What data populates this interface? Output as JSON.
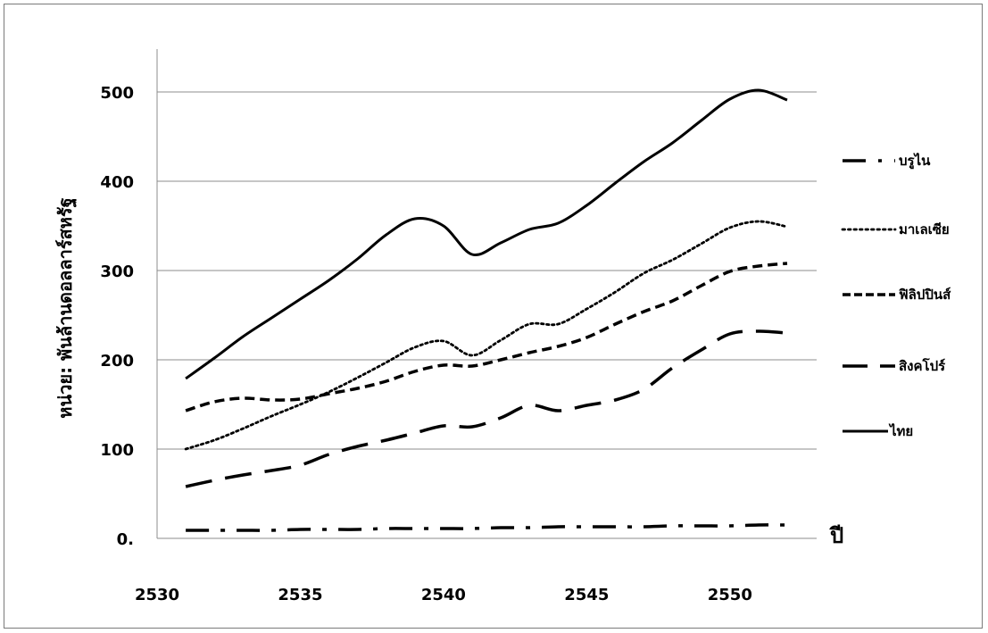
{
  "chart_data": {
    "type": "line",
    "ylabel": "หน่วย: พันล้านดอลลาร์สหรัฐ",
    "x_unit_label": "ปี",
    "xlim": [
      2530,
      2552
    ],
    "ylim": [
      0,
      550
    ],
    "x_ticks": [
      2530,
      2535,
      2540,
      2545,
      2550
    ],
    "y_ticks": [
      {
        "value": 0,
        "label": "0."
      },
      {
        "value": 100,
        "label": "100"
      },
      {
        "value": 200,
        "label": "200"
      },
      {
        "value": 300,
        "label": "300"
      },
      {
        "value": 400,
        "label": "400"
      },
      {
        "value": 500,
        "label": "500"
      }
    ],
    "grid": true,
    "legend_position": "right",
    "series": [
      {
        "name": "บรูไน",
        "style": "dash-dot",
        "x": [
          2531,
          2532,
          2533,
          2534,
          2535,
          2536,
          2537,
          2538,
          2539,
          2540,
          2541,
          2542,
          2543,
          2544,
          2545,
          2546,
          2547,
          2548,
          2549,
          2550,
          2551,
          2552
        ],
        "values": [
          9,
          9,
          9,
          9,
          10,
          10,
          10,
          11,
          11,
          11,
          11,
          12,
          12,
          13,
          13,
          13,
          13,
          14,
          14,
          14,
          15,
          15
        ]
      },
      {
        "name": "มาเลเซีย",
        "style": "dotted",
        "x": [
          2531,
          2532,
          2533,
          2534,
          2535,
          2536,
          2537,
          2538,
          2539,
          2540,
          2541,
          2542,
          2543,
          2544,
          2545,
          2546,
          2547,
          2548,
          2549,
          2550,
          2551,
          2552
        ],
        "values": [
          100,
          110,
          123,
          137,
          150,
          164,
          180,
          197,
          214,
          221,
          205,
          222,
          240,
          240,
          257,
          276,
          297,
          312,
          330,
          348,
          355,
          349
        ]
      },
      {
        "name": "ฟิลิปปินส์",
        "style": "short-dash",
        "x": [
          2531,
          2532,
          2533,
          2534,
          2535,
          2536,
          2537,
          2538,
          2539,
          2540,
          2541,
          2542,
          2543,
          2544,
          2545,
          2546,
          2547,
          2548,
          2549,
          2550,
          2551,
          2552
        ],
        "values": [
          143,
          153,
          157,
          155,
          156,
          162,
          168,
          176,
          187,
          194,
          193,
          200,
          208,
          215,
          225,
          240,
          254,
          266,
          283,
          299,
          305,
          308
        ]
      },
      {
        "name": "สิงคโปร์",
        "style": "long-dash",
        "x": [
          2531,
          2532,
          2533,
          2534,
          2535,
          2536,
          2537,
          2538,
          2539,
          2540,
          2541,
          2542,
          2543,
          2544,
          2545,
          2546,
          2547,
          2548,
          2549,
          2550,
          2551,
          2552
        ],
        "values": [
          58,
          65,
          71,
          76,
          82,
          94,
          103,
          110,
          118,
          126,
          125,
          135,
          149,
          143,
          149,
          155,
          167,
          191,
          211,
          229,
          232,
          230
        ]
      },
      {
        "name": "ไทย",
        "style": "solid",
        "x": [
          2531,
          2532,
          2533,
          2534,
          2535,
          2536,
          2537,
          2538,
          2539,
          2540,
          2541,
          2542,
          2543,
          2544,
          2545,
          2546,
          2547,
          2548,
          2549,
          2550,
          2551,
          2552
        ],
        "values": [
          179,
          202,
          226,
          247,
          268,
          289,
          313,
          340,
          358,
          350,
          318,
          331,
          346,
          353,
          373,
          398,
          422,
          443,
          468,
          492,
          502,
          491
        ]
      }
    ]
  }
}
